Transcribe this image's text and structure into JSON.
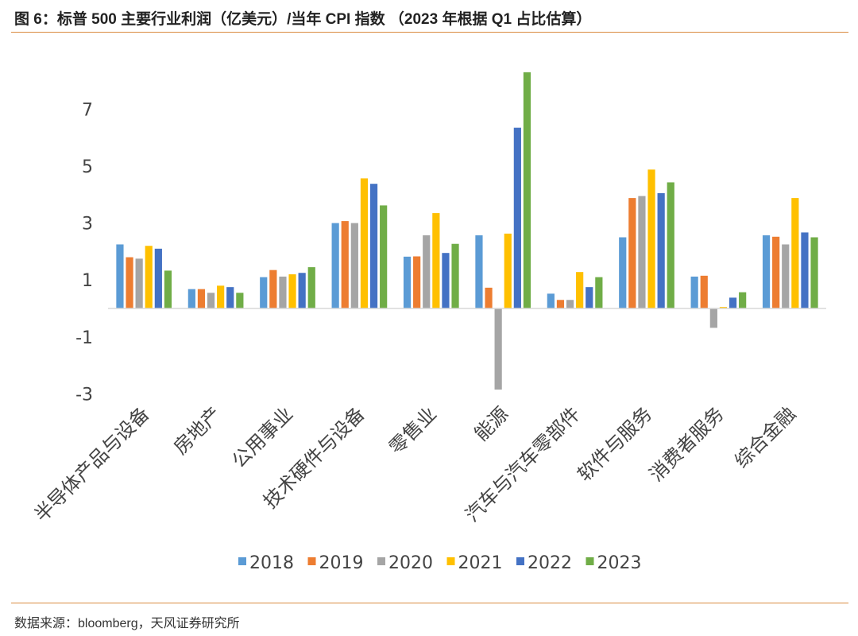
{
  "figure": {
    "title": "图 6：标普 500 主要行业利润（亿美元）/当年 CPI 指数 （2023 年根据 Q1 占比估算）",
    "source": "数据来源：bloomberg，天风证券研究所"
  },
  "chart_data": {
    "type": "bar",
    "title": "",
    "xlabel": "",
    "ylabel": "",
    "ylim": [
      -3.2,
      8.4
    ],
    "yticks": [
      7,
      5,
      3,
      1,
      -1,
      -3
    ],
    "grid": false,
    "legend_position": "bottom",
    "categories": [
      "半导体产品与设备",
      "房地产",
      "公用事业",
      "技术硬件与设备",
      "零售业",
      "能源",
      "汽车与汽车零部件",
      "软件与服务",
      "消费者服务",
      "综合金融"
    ],
    "series": [
      {
        "name": "2018",
        "color": "#5b9bd5",
        "values": [
          2.25,
          0.68,
          1.1,
          3.0,
          1.82,
          2.57,
          0.52,
          2.5,
          1.12,
          2.57
        ]
      },
      {
        "name": "2019",
        "color": "#ed7d31",
        "values": [
          1.8,
          0.68,
          1.35,
          3.07,
          1.83,
          0.73,
          0.3,
          3.88,
          1.15,
          2.52
        ]
      },
      {
        "name": "2020",
        "color": "#a5a5a5",
        "values": [
          1.75,
          0.55,
          1.12,
          3.0,
          2.57,
          -2.85,
          0.3,
          3.95,
          -0.68,
          2.25
        ]
      },
      {
        "name": "2021",
        "color": "#ffc000",
        "values": [
          2.2,
          0.8,
          1.2,
          4.57,
          3.35,
          2.63,
          1.28,
          4.88,
          0.05,
          3.88
        ]
      },
      {
        "name": "2022",
        "color": "#4472c4",
        "values": [
          2.1,
          0.75,
          1.25,
          4.38,
          1.95,
          6.35,
          0.75,
          4.05,
          0.38,
          2.67
        ]
      },
      {
        "name": "2023",
        "color": "#70ad47",
        "values": [
          1.33,
          0.55,
          1.45,
          3.62,
          2.27,
          8.3,
          1.1,
          4.43,
          0.57,
          2.5
        ]
      }
    ]
  }
}
